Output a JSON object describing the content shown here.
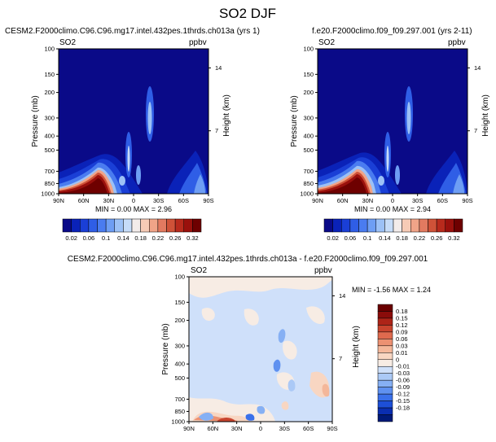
{
  "title": "SO2 DJF",
  "colors": {
    "blue_scale": [
      "#0a0a88",
      "#0a22b8",
      "#1a3fd6",
      "#2f5ee6",
      "#4a7cf0",
      "#6e9ef4",
      "#9cc1f6",
      "#c6dcf8",
      "#f3ecea",
      "#f6cbb6",
      "#f0a488",
      "#e27a60",
      "#cf5238",
      "#b82a1c",
      "#9a100c",
      "#6e0000"
    ],
    "diff_scale": [
      "#001a78",
      "#0a2eb0",
      "#1d4fd8",
      "#3a70ea",
      "#5f91f0",
      "#86b0f4",
      "#abc9f6",
      "#cfe0fa",
      "#f7ece4",
      "#f8d6c2",
      "#f4b79a",
      "#ec9172",
      "#df6a4e",
      "#c8442e",
      "#ad2418",
      "#8a0c0a",
      "#6a0000"
    ]
  },
  "chart_data": [
    {
      "type": "heatmap",
      "title": "CESM2.F2000climo.C96.C96.mg17.intel.432pes.1thrds.ch013a (yrs 1)",
      "variable_label": "SO2",
      "units_label": "ppbv",
      "ylabel": "Pressure (mb)",
      "y2label": "Height (km)",
      "x_ticks": [
        "90N",
        "60N",
        "30N",
        "0",
        "30S",
        "60S",
        "90S"
      ],
      "y_ticks": [
        "100",
        "150",
        "200",
        "300",
        "400",
        "500",
        "700",
        "850",
        "1000"
      ],
      "y2_ticks": [
        "14",
        "7"
      ],
      "stats": "MIN =   0.00  MAX =   2.96",
      "colorbar_labels": [
        "0.02",
        "0.06",
        "0.1",
        "0.14",
        "0.18",
        "0.22",
        "0.26",
        "0.32"
      ],
      "min": 0.0,
      "max": 2.96
    },
    {
      "type": "heatmap",
      "title": "f.e20.F2000climo.f09_f09.297.001 (yrs 2-11)",
      "variable_label": "SO2",
      "units_label": "ppbv",
      "ylabel": "Pressure (mb)",
      "y2label": "Height (km)",
      "x_ticks": [
        "90N",
        "60N",
        "30N",
        "0",
        "30S",
        "60S",
        "90S"
      ],
      "y_ticks": [
        "100",
        "150",
        "200",
        "300",
        "400",
        "500",
        "700",
        "850",
        "1000"
      ],
      "y2_ticks": [
        "14",
        "7"
      ],
      "stats": "MIN =   0.00  MAX =   2.94",
      "colorbar_labels": [
        "0.02",
        "0.06",
        "0.1",
        "0.14",
        "0.18",
        "0.22",
        "0.26",
        "0.32"
      ],
      "min": 0.0,
      "max": 2.94
    },
    {
      "type": "heatmap",
      "title": "CESM2.F2000climo.C96.C96.mg17.intel.432pes.1thrds.ch013a - f.e20.F2000climo.f09_f09.297.001",
      "variable_label": "SO2",
      "units_label": "ppbv",
      "ylabel": "Pressure (mb)",
      "y2label": "Height (km)",
      "x_ticks": [
        "90N",
        "60N",
        "30N",
        "0",
        "30S",
        "60S",
        "90S"
      ],
      "y_ticks": [
        "100",
        "150",
        "200",
        "300",
        "400",
        "500",
        "700",
        "850",
        "1000"
      ],
      "y2_ticks": [
        "14",
        "7"
      ],
      "stats": "MIN =  -1.56  MAX =    1.24",
      "colorbar_labels": [
        "0.18",
        "0.15",
        "0.12",
        "0.09",
        "0.06",
        "0.03",
        "0.01",
        "0",
        "-0.01",
        "-0.03",
        "-0.06",
        "-0.09",
        "-0.12",
        "-0.15",
        "-0.18"
      ],
      "min": -1.56,
      "max": 1.24
    }
  ]
}
